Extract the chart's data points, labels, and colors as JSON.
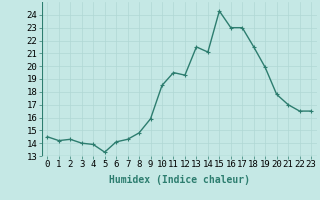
{
  "x": [
    0,
    1,
    2,
    3,
    4,
    5,
    6,
    7,
    8,
    9,
    10,
    11,
    12,
    13,
    14,
    15,
    16,
    17,
    18,
    19,
    20,
    21,
    22,
    23
  ],
  "y": [
    14.5,
    14.2,
    14.3,
    14.0,
    13.9,
    13.3,
    14.1,
    14.3,
    14.8,
    15.9,
    18.5,
    19.5,
    19.3,
    21.5,
    21.1,
    24.3,
    23.0,
    23.0,
    21.5,
    19.9,
    17.8,
    17.0,
    16.5,
    16.5
  ],
  "line_color": "#2d7d6f",
  "marker": "+",
  "marker_size": 3,
  "bg_color": "#c5e8e5",
  "grid_color": "#b0d8d4",
  "xlabel": "Humidex (Indice chaleur)",
  "ylim": [
    13,
    25
  ],
  "xlim": [
    -0.5,
    23.5
  ],
  "yticks": [
    13,
    14,
    15,
    16,
    17,
    18,
    19,
    20,
    21,
    22,
    23,
    24
  ],
  "xticks": [
    0,
    1,
    2,
    3,
    4,
    5,
    6,
    7,
    8,
    9,
    10,
    11,
    12,
    13,
    14,
    15,
    16,
    17,
    18,
    19,
    20,
    21,
    22,
    23
  ],
  "xlabel_fontsize": 7,
  "tick_fontsize": 6.5,
  "line_width": 1.0
}
